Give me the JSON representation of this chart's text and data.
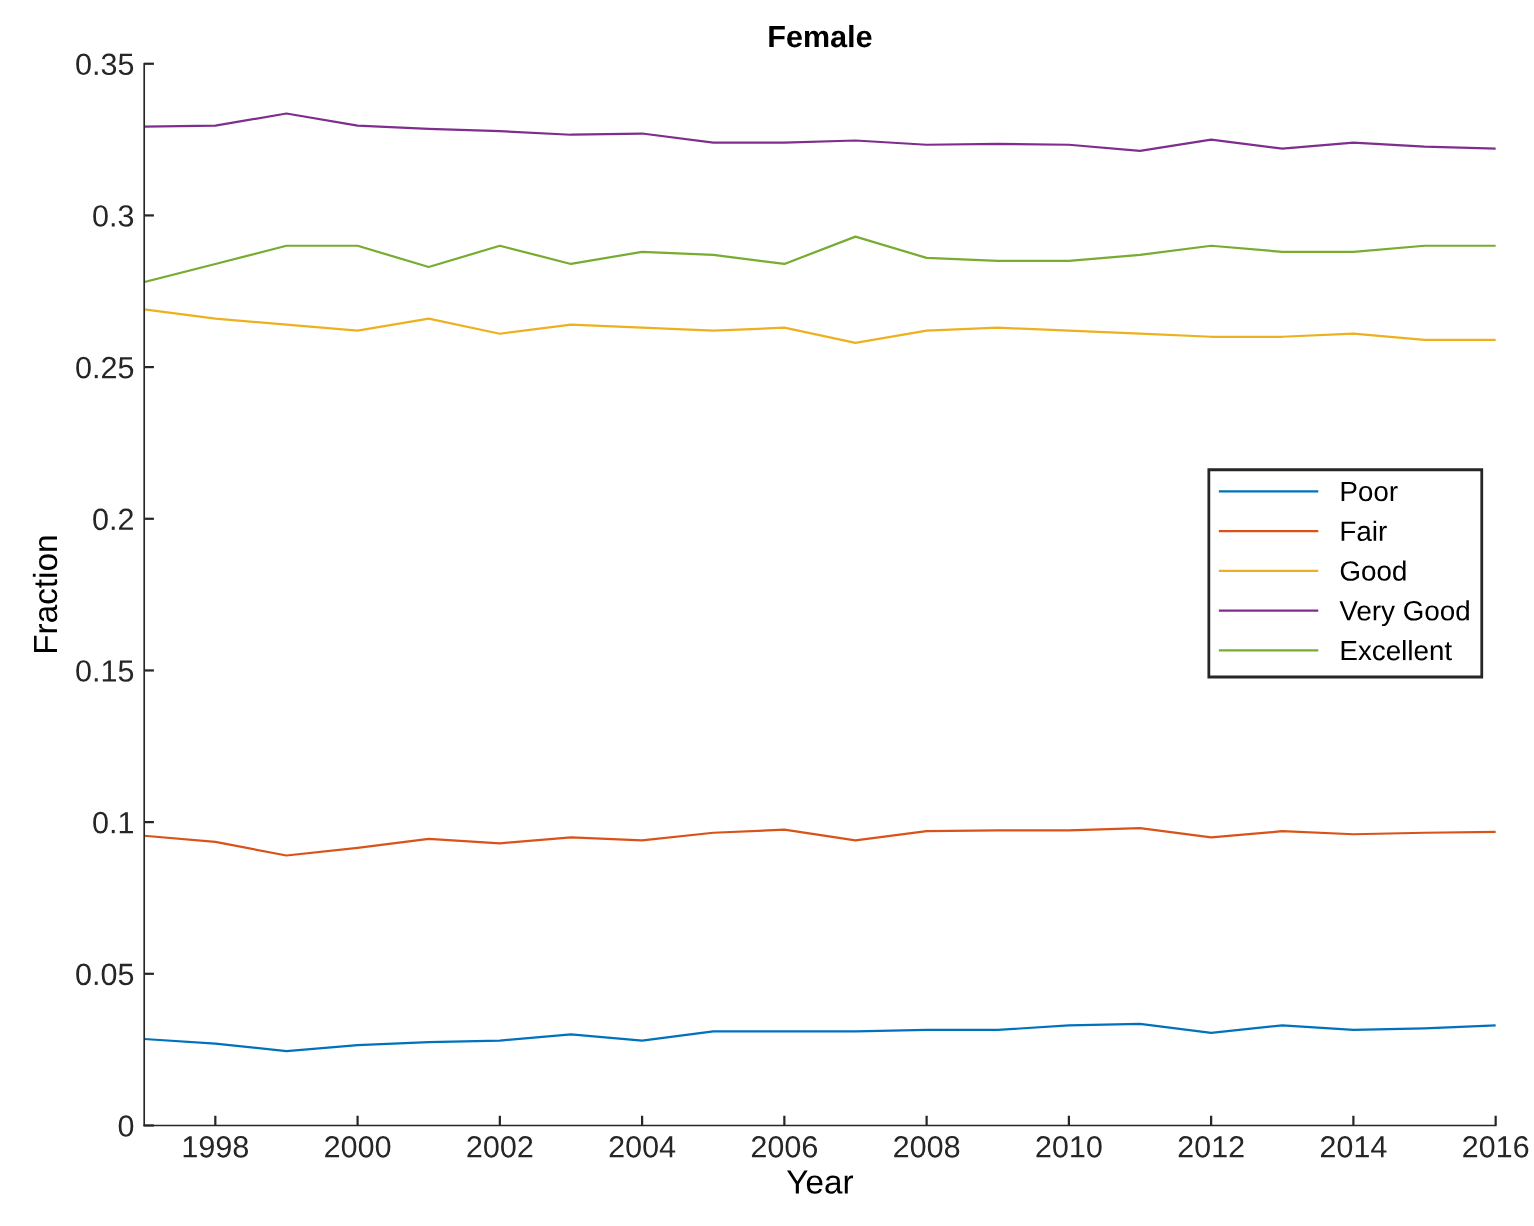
{
  "chart_data": {
    "type": "line",
    "title": "Female",
    "xlabel": "Year",
    "ylabel": "Fraction",
    "x": [
      1997,
      1998,
      1999,
      2000,
      2001,
      2002,
      2003,
      2004,
      2005,
      2006,
      2007,
      2008,
      2009,
      2010,
      2011,
      2012,
      2013,
      2014,
      2015,
      2016
    ],
    "series": [
      {
        "name": "Poor",
        "color": "#0072bd",
        "values": [
          0.0285,
          0.027,
          0.0245,
          0.0265,
          0.0275,
          0.028,
          0.03,
          0.028,
          0.031,
          0.031,
          0.031,
          0.0315,
          0.0315,
          0.033,
          0.0335,
          0.0305,
          0.033,
          0.0315,
          0.032,
          0.033
        ]
      },
      {
        "name": "Fair",
        "color": "#d95319",
        "values": [
          0.0955,
          0.0935,
          0.089,
          0.0915,
          0.0945,
          0.093,
          0.095,
          0.094,
          0.0965,
          0.0975,
          0.094,
          0.097,
          0.0973,
          0.0973,
          0.098,
          0.095,
          0.097,
          0.096,
          0.0965,
          0.0968
        ]
      },
      {
        "name": "Good",
        "color": "#edb120",
        "values": [
          0.269,
          0.266,
          0.264,
          0.262,
          0.266,
          0.261,
          0.264,
          0.263,
          0.262,
          0.263,
          0.258,
          0.262,
          0.263,
          0.262,
          0.261,
          0.26,
          0.26,
          0.261,
          0.259,
          0.259
        ]
      },
      {
        "name": "Very Good",
        "color": "#7e2f8e",
        "values": [
          0.3293,
          0.3296,
          0.3336,
          0.3296,
          0.3285,
          0.3278,
          0.3266,
          0.327,
          0.324,
          0.324,
          0.3247,
          0.3233,
          0.3236,
          0.3233,
          0.3213,
          0.325,
          0.322,
          0.324,
          0.3227,
          0.322
        ]
      },
      {
        "name": "Excellent",
        "color": "#77ac30",
        "values": [
          0.278,
          0.284,
          0.29,
          0.29,
          0.283,
          0.29,
          0.284,
          0.288,
          0.287,
          0.284,
          0.293,
          0.286,
          0.285,
          0.285,
          0.287,
          0.29,
          0.288,
          0.288,
          0.29,
          0.29
        ]
      }
    ],
    "xlim": [
      1997,
      2016
    ],
    "ylim": [
      0,
      0.35
    ],
    "xticks": [
      1998,
      2000,
      2002,
      2004,
      2006,
      2008,
      2010,
      2012,
      2014,
      2016
    ],
    "yticks": [
      0,
      0.05,
      0.1,
      0.15,
      0.2,
      0.25,
      0.3,
      0.35
    ],
    "grid": false,
    "legend": "center right",
    "marker": "none",
    "line_style": "solid"
  }
}
